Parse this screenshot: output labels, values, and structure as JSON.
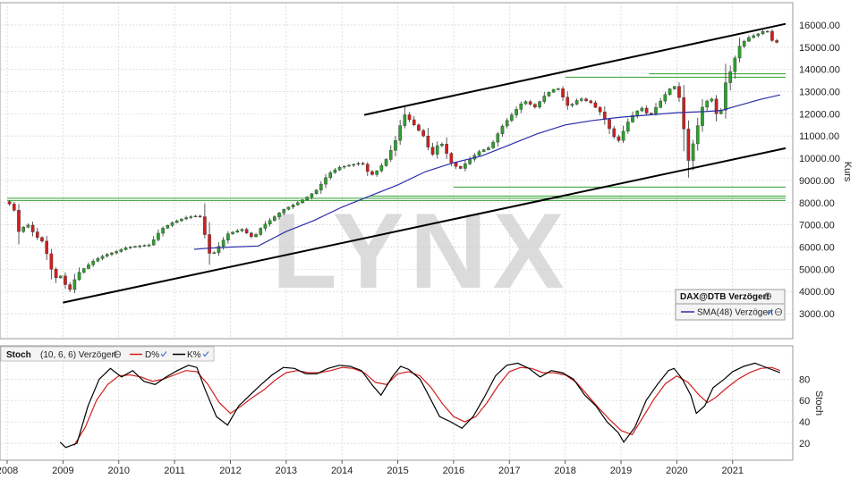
{
  "watermark": "LYNX",
  "price_panel": {
    "instrument_label": "DAX@DTB Verzögert",
    "sma_label": "SMA(48) Verzögert",
    "axis_label": "Kurs"
  },
  "stoch_panel": {
    "title": "Stoch",
    "params": "(10, 6, 6) Verzögert",
    "d_label": "D%",
    "k_label": "K%",
    "axis_label": "Stoch"
  },
  "colors": {
    "bull": "#2ea12e",
    "bear": "#d11f1f",
    "sma": "#2b2fa8",
    "channel": "#000000",
    "support": "#2ea12e",
    "d_line": "#d11f1f",
    "k_line": "#000000",
    "grid": "#cccccc"
  },
  "chart_data": [
    {
      "type": "candlestick",
      "x_range": [
        2008.0,
        2021.95
      ],
      "x_ticks": [
        2008,
        2009,
        2010,
        2011,
        2012,
        2013,
        2014,
        2015,
        2016,
        2017,
        2018,
        2019,
        2020,
        2021
      ],
      "ylim": [
        2400,
        16400
      ],
      "y_ticks": [
        3000,
        4000,
        5000,
        6000,
        7000,
        8000,
        9000,
        10000,
        11000,
        12000,
        13000,
        14000,
        15000,
        16000
      ],
      "y_tick_labels": [
        "3000.00",
        "4000.00",
        "5000.00",
        "6000.00",
        "7000.00",
        "8000.00",
        "9000.00",
        "10000.00",
        "11000.00",
        "12000.00",
        "13000.00",
        "14000.00",
        "15000.00",
        "16000.00"
      ],
      "grid": true,
      "close_path": [
        [
          2008.0,
          8050
        ],
        [
          2008.15,
          7850
        ],
        [
          2008.25,
          6700
        ],
        [
          2008.4,
          7050
        ],
        [
          2008.55,
          6500
        ],
        [
          2008.7,
          6200
        ],
        [
          2008.8,
          5200
        ],
        [
          2008.9,
          4600
        ],
        [
          2009.0,
          4700
        ],
        [
          2009.15,
          4000
        ],
        [
          2009.3,
          4800
        ],
        [
          2009.45,
          5100
        ],
        [
          2009.6,
          5400
        ],
        [
          2009.8,
          5650
        ],
        [
          2010.0,
          5800
        ],
        [
          2010.2,
          6000
        ],
        [
          2010.4,
          6050
        ],
        [
          2010.6,
          6100
        ],
        [
          2010.8,
          6800
        ],
        [
          2011.0,
          7100
        ],
        [
          2011.2,
          7300
        ],
        [
          2011.4,
          7400
        ],
        [
          2011.55,
          7350
        ],
        [
          2011.62,
          5700
        ],
        [
          2011.75,
          5750
        ],
        [
          2012.0,
          6600
        ],
        [
          2012.25,
          6800
        ],
        [
          2012.45,
          6400
        ],
        [
          2012.6,
          6900
        ],
        [
          2012.8,
          7300
        ],
        [
          2013.0,
          7700
        ],
        [
          2013.25,
          8000
        ],
        [
          2013.45,
          8300
        ],
        [
          2013.6,
          8600
        ],
        [
          2013.8,
          9300
        ],
        [
          2014.0,
          9600
        ],
        [
          2014.2,
          9700
        ],
        [
          2014.4,
          9800
        ],
        [
          2014.55,
          9200
        ],
        [
          2014.7,
          9500
        ],
        [
          2014.85,
          10000
        ],
        [
          2015.0,
          10800
        ],
        [
          2015.15,
          12000
        ],
        [
          2015.3,
          11600
        ],
        [
          2015.5,
          11000
        ],
        [
          2015.65,
          10100
        ],
        [
          2015.8,
          10800
        ],
        [
          2016.0,
          9800
        ],
        [
          2016.15,
          9500
        ],
        [
          2016.35,
          10000
        ],
        [
          2016.5,
          10300
        ],
        [
          2016.7,
          10500
        ],
        [
          2016.9,
          11400
        ],
        [
          2017.1,
          12000
        ],
        [
          2017.3,
          12600
        ],
        [
          2017.5,
          12300
        ],
        [
          2017.7,
          12900
        ],
        [
          2017.9,
          13200
        ],
        [
          2018.1,
          12300
        ],
        [
          2018.3,
          12700
        ],
        [
          2018.5,
          12500
        ],
        [
          2018.7,
          12000
        ],
        [
          2018.9,
          11000
        ],
        [
          2019.0,
          10800
        ],
        [
          2019.2,
          11800
        ],
        [
          2019.4,
          12300
        ],
        [
          2019.55,
          11900
        ],
        [
          2019.7,
          12400
        ],
        [
          2019.9,
          13100
        ],
        [
          2020.05,
          13300
        ],
        [
          2020.15,
          11600
        ],
        [
          2020.25,
          9900
        ],
        [
          2020.35,
          10800
        ],
        [
          2020.5,
          12300
        ],
        [
          2020.65,
          12800
        ],
        [
          2020.8,
          11600
        ],
        [
          2020.9,
          13300
        ],
        [
          2021.0,
          13900
        ],
        [
          2021.15,
          15000
        ],
        [
          2021.3,
          15400
        ],
        [
          2021.5,
          15600
        ],
        [
          2021.65,
          15800
        ],
        [
          2021.75,
          15300
        ],
        [
          2021.85,
          15200
        ]
      ],
      "series": [
        {
          "name": "SMA(48) Verzögert",
          "points": [
            [
              2011.35,
              5900
            ],
            [
              2011.6,
              5950
            ],
            [
              2012.0,
              6000
            ],
            [
              2012.5,
              6050
            ],
            [
              2013.0,
              6700
            ],
            [
              2013.5,
              7200
            ],
            [
              2014.0,
              7800
            ],
            [
              2014.5,
              8300
            ],
            [
              2015.0,
              8800
            ],
            [
              2015.5,
              9400
            ],
            [
              2016.0,
              9800
            ],
            [
              2016.5,
              10100
            ],
            [
              2017.0,
              10600
            ],
            [
              2017.5,
              11100
            ],
            [
              2018.0,
              11500
            ],
            [
              2018.5,
              11700
            ],
            [
              2019.0,
              11850
            ],
            [
              2019.5,
              11950
            ],
            [
              2020.0,
              12050
            ],
            [
              2020.5,
              12100
            ],
            [
              2020.8,
              12150
            ],
            [
              2021.0,
              12300
            ],
            [
              2021.5,
              12650
            ],
            [
              2021.85,
              12850
            ]
          ]
        }
      ],
      "channel": [
        {
          "from": [
            2009.0,
            3500
          ],
          "to": [
            2021.95,
            10450
          ]
        },
        {
          "from": [
            2014.4,
            11950
          ],
          "to": [
            2021.95,
            16050
          ]
        }
      ],
      "support": [
        {
          "from": [
            2008.0,
            8100
          ],
          "to": [
            2021.95,
            8100
          ]
        },
        {
          "from": [
            2008.0,
            8200
          ],
          "to": [
            2021.95,
            8200
          ]
        },
        {
          "from": [
            2014.5,
            8300
          ],
          "to": [
            2021.95,
            8300
          ]
        },
        {
          "from": [
            2016.0,
            8700
          ],
          "to": [
            2021.95,
            8700
          ]
        },
        {
          "from": [
            2018.0,
            13650
          ],
          "to": [
            2021.95,
            13650
          ]
        },
        {
          "from": [
            2019.5,
            13800
          ],
          "to": [
            2021.95,
            13800
          ]
        }
      ]
    },
    {
      "type": "line",
      "ylim": [
        10,
        102
      ],
      "y_ticks": [
        20,
        40,
        60,
        80
      ],
      "grid": true,
      "series": [
        {
          "name": "K%",
          "points": [
            [
              2008.95,
              21
            ],
            [
              2009.05,
              16
            ],
            [
              2009.25,
              20
            ],
            [
              2009.45,
              55
            ],
            [
              2009.65,
              80
            ],
            [
              2009.85,
              90
            ],
            [
              2010.05,
              82
            ],
            [
              2010.25,
              88
            ],
            [
              2010.45,
              78
            ],
            [
              2010.65,
              75
            ],
            [
              2010.85,
              82
            ],
            [
              2011.05,
              88
            ],
            [
              2011.25,
              93
            ],
            [
              2011.4,
              91
            ],
            [
              2011.55,
              70
            ],
            [
              2011.75,
              45
            ],
            [
              2011.95,
              37
            ],
            [
              2012.15,
              55
            ],
            [
              2012.35,
              65
            ],
            [
              2012.55,
              75
            ],
            [
              2012.75,
              84
            ],
            [
              2012.95,
              91
            ],
            [
              2013.15,
              90
            ],
            [
              2013.35,
              85
            ],
            [
              2013.55,
              85
            ],
            [
              2013.75,
              90
            ],
            [
              2013.95,
              93
            ],
            [
              2014.15,
              92
            ],
            [
              2014.35,
              88
            ],
            [
              2014.55,
              74
            ],
            [
              2014.7,
              65
            ],
            [
              2014.9,
              82
            ],
            [
              2015.05,
              92
            ],
            [
              2015.2,
              89
            ],
            [
              2015.4,
              80
            ],
            [
              2015.55,
              65
            ],
            [
              2015.75,
              45
            ],
            [
              2015.95,
              40
            ],
            [
              2016.15,
              34
            ],
            [
              2016.35,
              45
            ],
            [
              2016.55,
              63
            ],
            [
              2016.75,
              83
            ],
            [
              2016.95,
              93
            ],
            [
              2017.15,
              95
            ],
            [
              2017.35,
              90
            ],
            [
              2017.55,
              82
            ],
            [
              2017.75,
              88
            ],
            [
              2017.95,
              86
            ],
            [
              2018.15,
              80
            ],
            [
              2018.35,
              65
            ],
            [
              2018.55,
              55
            ],
            [
              2018.75,
              40
            ],
            [
              2018.95,
              30
            ],
            [
              2019.05,
              21
            ],
            [
              2019.25,
              35
            ],
            [
              2019.45,
              60
            ],
            [
              2019.65,
              75
            ],
            [
              2019.85,
              88
            ],
            [
              2019.95,
              90
            ],
            [
              2020.1,
              80
            ],
            [
              2020.25,
              65
            ],
            [
              2020.35,
              48
            ],
            [
              2020.5,
              55
            ],
            [
              2020.65,
              72
            ],
            [
              2020.85,
              80
            ],
            [
              2021.0,
              87
            ],
            [
              2021.2,
              92
            ],
            [
              2021.4,
              95
            ],
            [
              2021.55,
              92
            ],
            [
              2021.7,
              89
            ],
            [
              2021.85,
              86
            ]
          ]
        },
        {
          "name": "D%",
          "points": [
            [
              2009.2,
              18
            ],
            [
              2009.4,
              35
            ],
            [
              2009.6,
              60
            ],
            [
              2009.8,
              75
            ],
            [
              2010.0,
              83
            ],
            [
              2010.2,
              84
            ],
            [
              2010.4,
              82
            ],
            [
              2010.6,
              78
            ],
            [
              2010.8,
              80
            ],
            [
              2011.0,
              84
            ],
            [
              2011.2,
              88
            ],
            [
              2011.4,
              87
            ],
            [
              2011.6,
              75
            ],
            [
              2011.8,
              58
            ],
            [
              2012.0,
              48
            ],
            [
              2012.2,
              55
            ],
            [
              2012.4,
              63
            ],
            [
              2012.6,
              70
            ],
            [
              2012.8,
              79
            ],
            [
              2013.0,
              86
            ],
            [
              2013.2,
              88
            ],
            [
              2013.4,
              86
            ],
            [
              2013.6,
              86
            ],
            [
              2013.8,
              88
            ],
            [
              2014.0,
              91
            ],
            [
              2014.2,
              90
            ],
            [
              2014.4,
              86
            ],
            [
              2014.6,
              77
            ],
            [
              2014.8,
              75
            ],
            [
              2015.0,
              85
            ],
            [
              2015.2,
              87
            ],
            [
              2015.4,
              83
            ],
            [
              2015.6,
              72
            ],
            [
              2015.8,
              57
            ],
            [
              2016.0,
              45
            ],
            [
              2016.2,
              40
            ],
            [
              2016.4,
              45
            ],
            [
              2016.6,
              58
            ],
            [
              2016.8,
              74
            ],
            [
              2017.0,
              87
            ],
            [
              2017.2,
              91
            ],
            [
              2017.4,
              90
            ],
            [
              2017.6,
              86
            ],
            [
              2017.8,
              86
            ],
            [
              2018.0,
              84
            ],
            [
              2018.2,
              77
            ],
            [
              2018.4,
              65
            ],
            [
              2018.6,
              53
            ],
            [
              2018.8,
              42
            ],
            [
              2019.0,
              32
            ],
            [
              2019.2,
              28
            ],
            [
              2019.4,
              45
            ],
            [
              2019.6,
              62
            ],
            [
              2019.8,
              76
            ],
            [
              2020.0,
              83
            ],
            [
              2020.2,
              77
            ],
            [
              2020.4,
              65
            ],
            [
              2020.55,
              58
            ],
            [
              2020.7,
              63
            ],
            [
              2020.9,
              72
            ],
            [
              2021.1,
              80
            ],
            [
              2021.3,
              86
            ],
            [
              2021.5,
              90
            ],
            [
              2021.7,
              91
            ],
            [
              2021.85,
              88
            ]
          ]
        }
      ]
    }
  ]
}
